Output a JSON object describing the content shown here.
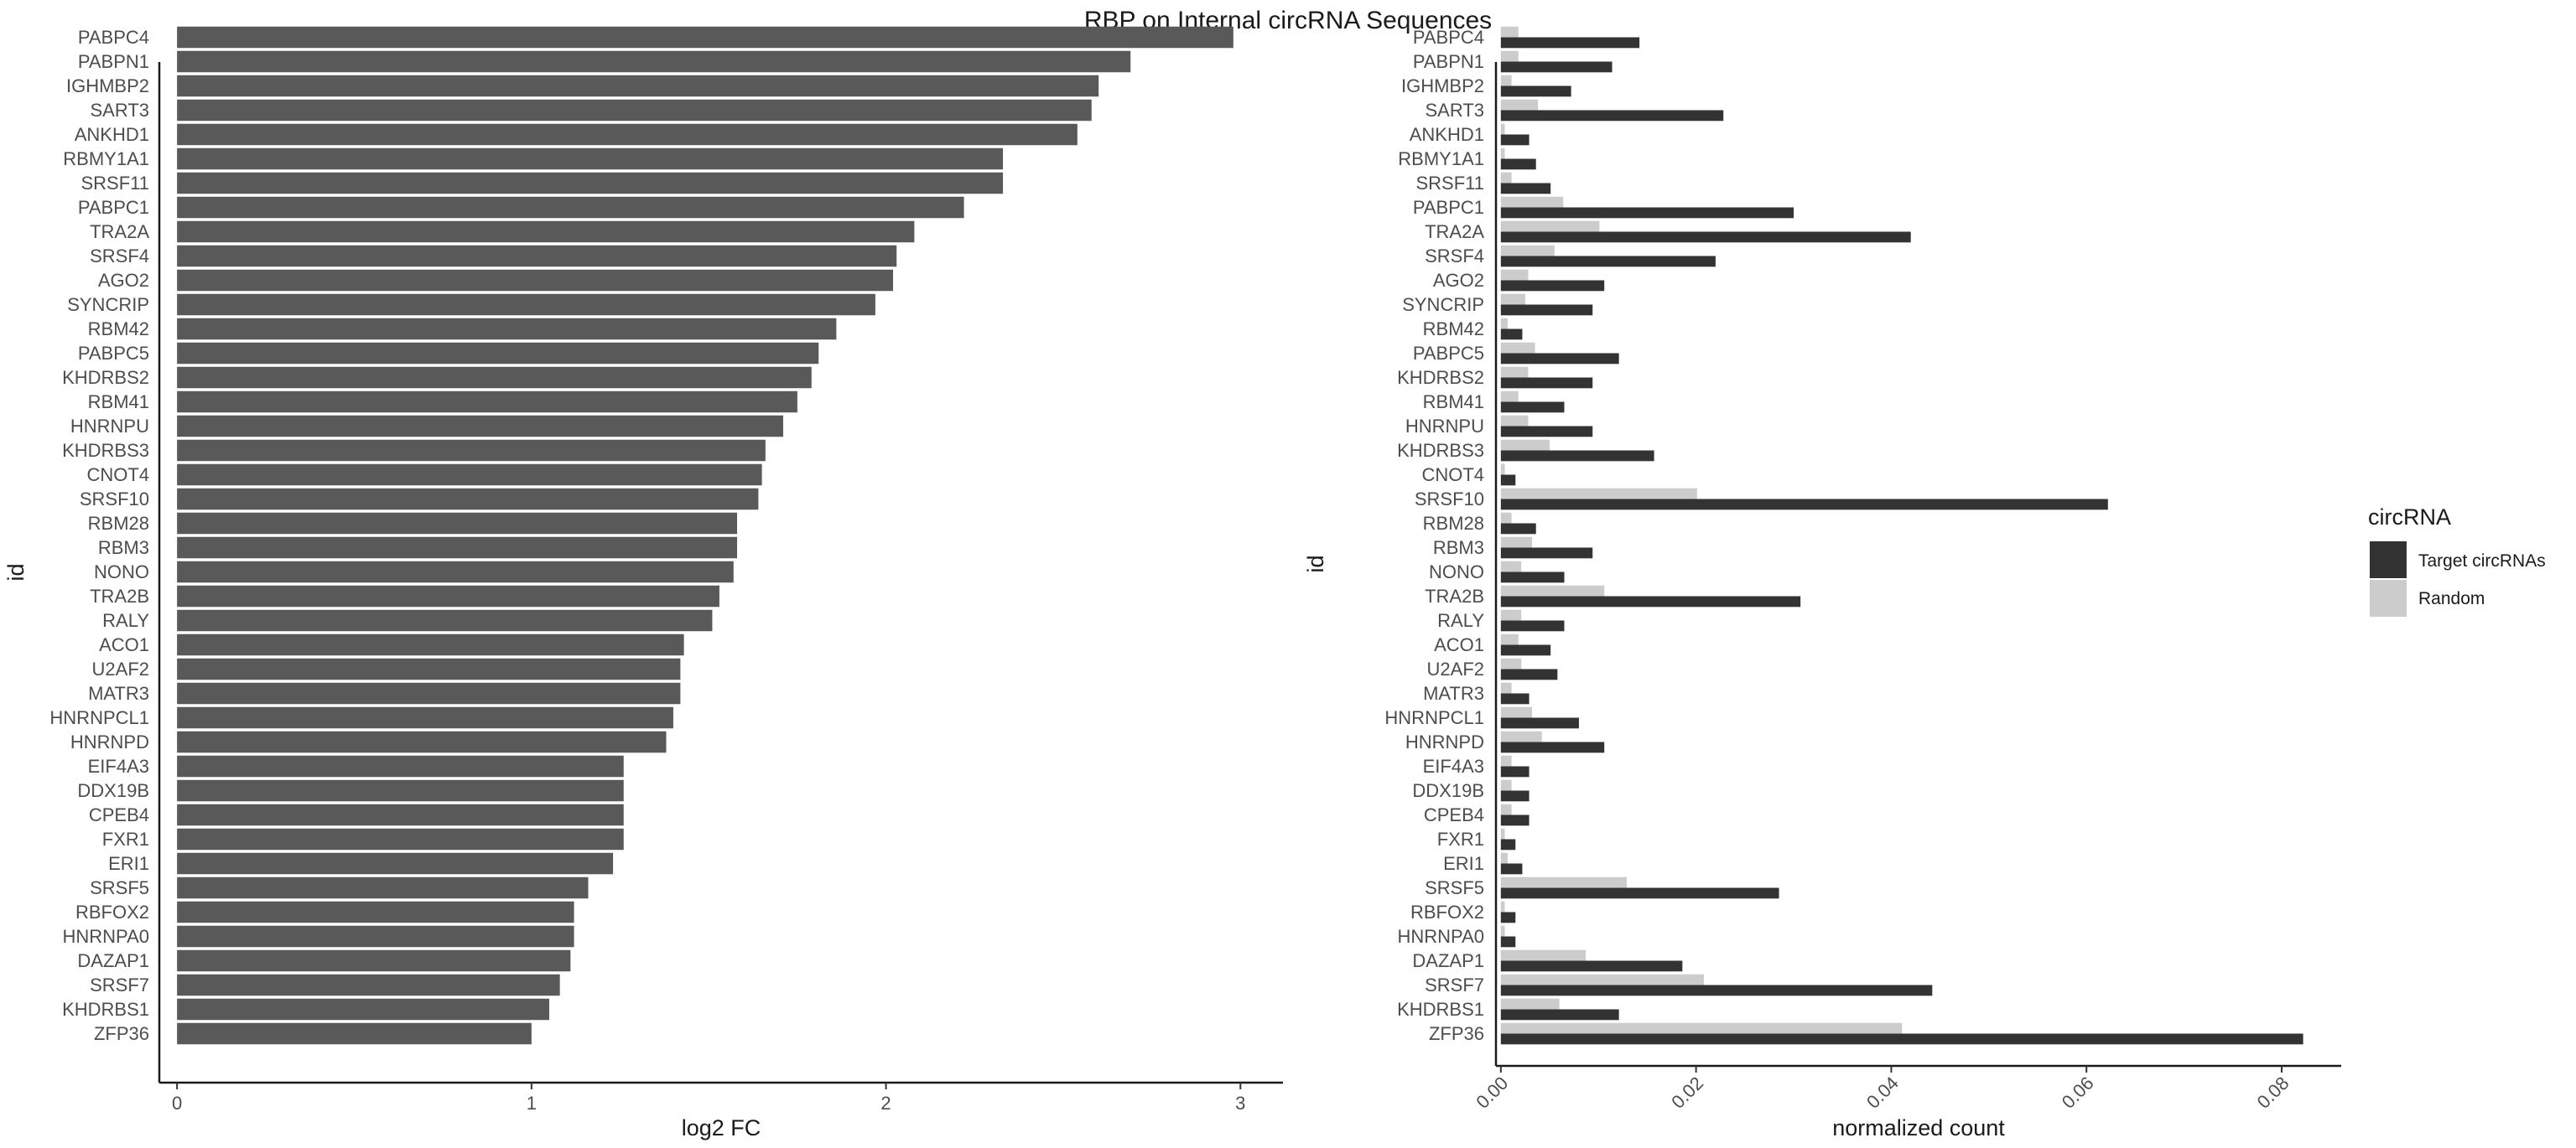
{
  "title": "RBP on Internal circRNA Sequences",
  "chart_data": [
    {
      "type": "bar",
      "orientation": "horizontal",
      "categories": [
        "PABPC4",
        "PABPN1",
        "IGHMBP2",
        "SART3",
        "ANKHD1",
        "RBMY1A1",
        "SRSF11",
        "PABPC1",
        "TRA2A",
        "SRSF4",
        "AGO2",
        "SYNCRIP",
        "RBM42",
        "PABPC5",
        "KHDRBS2",
        "RBM41",
        "HNRNPU",
        "KHDRBS3",
        "CNOT4",
        "SRSF10",
        "RBM28",
        "RBM3",
        "NONO",
        "TRA2B",
        "RALY",
        "ACO1",
        "U2AF2",
        "MATR3",
        "HNRNPCL1",
        "HNRNPD",
        "EIF4A3",
        "DDX19B",
        "CPEB4",
        "FXR1",
        "ERI1",
        "SRSF5",
        "RBFOX2",
        "HNRNPA0",
        "DAZAP1",
        "SRSF7",
        "KHDRBS1",
        "ZFP36"
      ],
      "values": [
        2.98,
        2.69,
        2.6,
        2.58,
        2.54,
        2.33,
        2.33,
        2.22,
        2.08,
        2.03,
        2.02,
        1.97,
        1.86,
        1.81,
        1.79,
        1.75,
        1.71,
        1.66,
        1.65,
        1.64,
        1.58,
        1.58,
        1.57,
        1.53,
        1.51,
        1.43,
        1.42,
        1.42,
        1.4,
        1.38,
        1.26,
        1.26,
        1.26,
        1.26,
        1.23,
        1.16,
        1.12,
        1.12,
        1.11,
        1.08,
        1.05,
        1.0
      ],
      "xlabel": "log2 FC",
      "ylabel": "id",
      "xlim": [
        -0.05,
        3.12
      ],
      "xticks": [
        "0",
        "1",
        "2",
        "3"
      ],
      "color": "#595959",
      "grid": false
    },
    {
      "type": "bar",
      "orientation": "horizontal",
      "grouped": true,
      "categories": [
        "PABPC4",
        "PABPN1",
        "IGHMBP2",
        "SART3",
        "ANKHD1",
        "RBMY1A1",
        "SRSF11",
        "PABPC1",
        "TRA2A",
        "SRSF4",
        "AGO2",
        "SYNCRIP",
        "RBM42",
        "PABPC5",
        "KHDRBS2",
        "RBM41",
        "HNRNPU",
        "KHDRBS3",
        "CNOT4",
        "SRSF10",
        "RBM28",
        "RBM3",
        "NONO",
        "TRA2B",
        "RALY",
        "ACO1",
        "U2AF2",
        "MATR3",
        "HNRNPCL1",
        "HNRNPD",
        "EIF4A3",
        "DDX19B",
        "CPEB4",
        "FXR1",
        "ERI1",
        "SRSF5",
        "RBFOX2",
        "HNRNPA0",
        "DAZAP1",
        "SRSF7",
        "KHDRBS1",
        "ZFP36"
      ],
      "series": [
        {
          "name": "Target circRNAs",
          "color": "#333333",
          "values": [
            0.0142,
            0.0114,
            0.0072,
            0.0228,
            0.0029,
            0.0036,
            0.0051,
            0.03,
            0.042,
            0.022,
            0.0106,
            0.0094,
            0.0022,
            0.0121,
            0.0094,
            0.0065,
            0.0094,
            0.0157,
            0.0015,
            0.0622,
            0.0036,
            0.0094,
            0.0065,
            0.0307,
            0.0065,
            0.0051,
            0.0058,
            0.0029,
            0.008,
            0.0106,
            0.0029,
            0.0029,
            0.0029,
            0.0015,
            0.0022,
            0.0285,
            0.0015,
            0.0015,
            0.0186,
            0.0442,
            0.0121,
            0.0822
          ]
        },
        {
          "name": "Random",
          "color": "#cccccc",
          "values": [
            0.0018,
            0.0018,
            0.0011,
            0.0038,
            0.0004,
            0.0004,
            0.0011,
            0.0064,
            0.0101,
            0.0055,
            0.0028,
            0.0025,
            0.0007,
            0.0035,
            0.0028,
            0.0018,
            0.0028,
            0.005,
            0.0004,
            0.0201,
            0.0011,
            0.0032,
            0.0021,
            0.0106,
            0.0021,
            0.0018,
            0.0021,
            0.0011,
            0.0032,
            0.0042,
            0.0011,
            0.0011,
            0.0011,
            0.0004,
            0.0007,
            0.0129,
            0.0004,
            0.0004,
            0.0087,
            0.0208,
            0.006,
            0.0411
          ]
        }
      ],
      "xlabel": "normalized count",
      "ylabel": "id",
      "xlim": [
        -0.0005,
        0.0861
      ],
      "xticks": [
        "0.00",
        "0.02",
        "0.04",
        "0.06",
        "0.08"
      ],
      "grid": false
    }
  ],
  "legend": {
    "title": "circRNA",
    "placement": "right",
    "items": [
      {
        "label": "Target circRNAs",
        "color": "#333333"
      },
      {
        "label": "Random",
        "color": "#cccccc"
      }
    ]
  }
}
